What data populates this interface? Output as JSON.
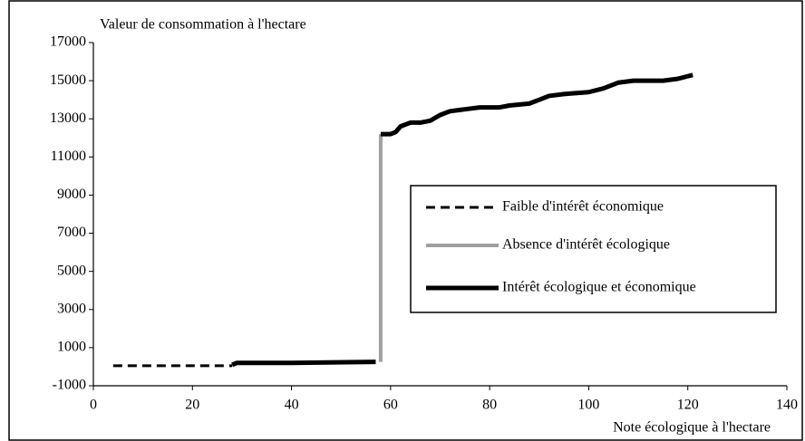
{
  "chart_data": {
    "type": "line",
    "ylabel": "Valeur de consommation à l'hectare",
    "xlabel": "Note écologique à l'hectare",
    "xlim": [
      0,
      140
    ],
    "xticks": [
      0,
      20,
      40,
      60,
      80,
      100,
      120,
      140
    ],
    "ylim": [
      -1000,
      17000
    ],
    "yticks": [
      -1000,
      1000,
      3000,
      5000,
      7000,
      9000,
      11000,
      13000,
      15000,
      17000
    ],
    "legend": "right",
    "series": [
      {
        "name": "Faible d'intérêt économique",
        "color": "#000000",
        "style": "dashed",
        "x": [
          4,
          28
        ],
        "values": [
          50,
          50
        ]
      },
      {
        "name": "Absence d'intérêt écologique",
        "color": "#a0a0a0",
        "style": "solid",
        "x": [
          58,
          58
        ],
        "values": [
          250,
          12200
        ]
      },
      {
        "name": "Intérêt écologique et économique",
        "color": "#000000",
        "style": "solid",
        "x": [
          28,
          29,
          40,
          57,
          57.5,
          58,
          60,
          61,
          62,
          64,
          66,
          68,
          70,
          72,
          75,
          78,
          82,
          84,
          88,
          90,
          92,
          95,
          100,
          103,
          106,
          109,
          115,
          118,
          121
        ],
        "values": [
          100,
          200,
          200,
          250,
          null,
          12200,
          12200,
          12300,
          12600,
          12800,
          12800,
          12900,
          13200,
          13400,
          13500,
          13600,
          13600,
          13700,
          13800,
          14000,
          14200,
          14300,
          14400,
          14600,
          14900,
          15000,
          15000,
          15100,
          15300
        ]
      }
    ]
  }
}
